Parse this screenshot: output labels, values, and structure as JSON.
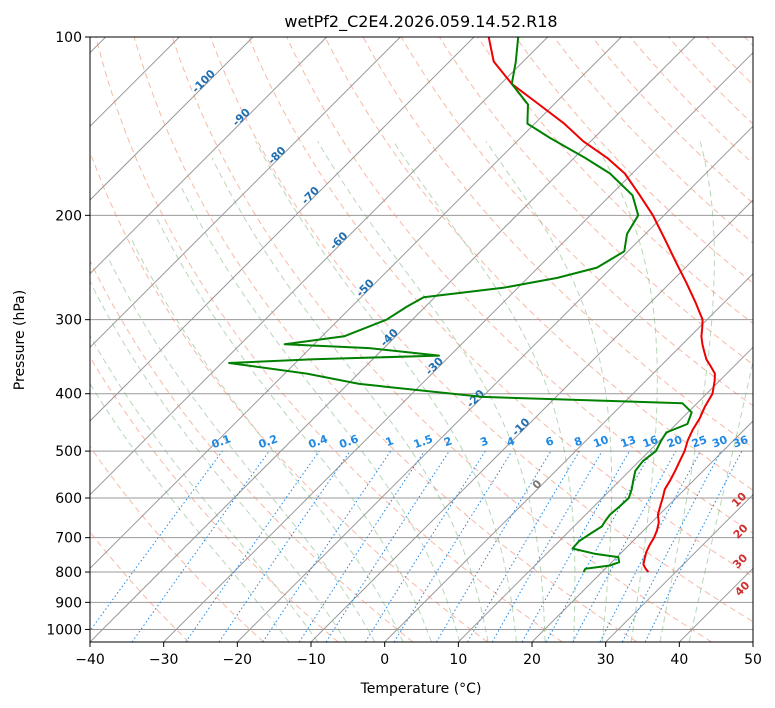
{
  "chart_data": {
    "type": "line",
    "title": "wetPf2_C2E4.2026.059.14.52.R18",
    "xlabel": "Temperature (°C)",
    "ylabel": "Pressure (hPa)",
    "xlim": [
      -40,
      50
    ],
    "ylim": [
      1050,
      100
    ],
    "y_scale": "log",
    "skew_deg": 45,
    "x_ticks": [
      -40,
      -30,
      -20,
      -10,
      0,
      10,
      20,
      30,
      40,
      50
    ],
    "y_ticks": [
      100,
      200,
      300,
      400,
      500,
      600,
      700,
      800,
      900,
      1000
    ],
    "grid": true,
    "colors": {
      "temperature": "#ee0000",
      "dewpoint": "#008000",
      "isotherm": "#999999",
      "dry_adiabat": "#f08060",
      "moist_adiabat": "#70b070",
      "mixing_ratio": "#1e88e5",
      "isotherm_label": "#1f6fb2",
      "dry_adiabat_label": "#d03030"
    },
    "isotherm_labels": [
      "-100",
      "-90",
      "-80",
      "-70",
      "-60",
      "-50",
      "-40",
      "-30",
      "-20",
      "-10",
      "0"
    ],
    "isotherm_label_pressures": [
      120,
      138,
      160,
      187,
      223,
      268,
      325,
      363,
      412,
      460,
      575
    ],
    "dry_adiabat_labels": [
      "10",
      "20",
      "30",
      "40"
    ],
    "dry_adiabat_label_positions": [
      [
        29.5,
        610
      ],
      [
        34,
        690
      ],
      [
        38,
        775
      ],
      [
        42,
        862
      ]
    ],
    "mixing_ratio_labels": [
      "0.1",
      "0.2",
      "0.4",
      "0.6",
      "1",
      "1.5",
      "2",
      "3",
      "4",
      "6",
      "8",
      "10",
      "13",
      "16",
      "20",
      "25",
      "30",
      "36"
    ],
    "series": [
      {
        "key": "temperature",
        "points": [
          [
            26.3,
            800
          ],
          [
            25.5,
            790
          ],
          [
            24.6,
            777
          ],
          [
            24.0,
            760
          ],
          [
            23.3,
            740
          ],
          [
            22.8,
            720
          ],
          [
            22.4,
            700
          ],
          [
            21.8,
            680
          ],
          [
            21.0,
            660
          ],
          [
            19.8,
            640
          ],
          [
            19.0,
            620
          ],
          [
            18.2,
            600
          ],
          [
            17.3,
            580
          ],
          [
            16.8,
            560
          ],
          [
            16.2,
            540
          ],
          [
            15.5,
            520
          ],
          [
            14.8,
            500
          ],
          [
            13.8,
            480
          ],
          [
            13.0,
            460
          ],
          [
            12.4,
            440
          ],
          [
            11.5,
            420
          ],
          [
            10.8,
            400
          ],
          [
            9.3,
            380
          ],
          [
            8.4,
            370
          ],
          [
            6.9,
            360
          ],
          [
            5.3,
            350
          ],
          [
            4.0,
            340
          ],
          [
            2.7,
            330
          ],
          [
            1.5,
            320
          ],
          [
            0.5,
            310
          ],
          [
            -0.6,
            300
          ],
          [
            -4,
            280
          ],
          [
            -7.8,
            260
          ],
          [
            -12,
            240
          ],
          [
            -16.5,
            220
          ],
          [
            -21.5,
            200
          ],
          [
            -26,
            185
          ],
          [
            -31,
            170
          ],
          [
            -35.5,
            160
          ],
          [
            -41,
            150
          ],
          [
            -46,
            140
          ],
          [
            -52,
            130
          ],
          [
            -58.5,
            120
          ],
          [
            -64,
            110
          ],
          [
            -68,
            100
          ]
        ]
      },
      {
        "key": "dewpoint",
        "points": [
          [
            17.5,
            800
          ],
          [
            17.3,
            790
          ],
          [
            20.2,
            780
          ],
          [
            21.0,
            770
          ],
          [
            20.2,
            755
          ],
          [
            16.5,
            745
          ],
          [
            12.8,
            730
          ],
          [
            12.7,
            710
          ],
          [
            13.2,
            690
          ],
          [
            13.8,
            670
          ],
          [
            13.5,
            655
          ],
          [
            13.3,
            640
          ],
          [
            13.5,
            620
          ],
          [
            13.6,
            600
          ],
          [
            12.8,
            580
          ],
          [
            11.8,
            560
          ],
          [
            10.8,
            540
          ],
          [
            10.5,
            520
          ],
          [
            10.9,
            500
          ],
          [
            10.2,
            480
          ],
          [
            9.8,
            465
          ],
          [
            11.5,
            450
          ],
          [
            10.5,
            430
          ],
          [
            8.0,
            415
          ],
          [
            -20.0,
            405
          ],
          [
            -38.5,
            385
          ],
          [
            -47,
            370
          ],
          [
            -59,
            355
          ],
          [
            -48,
            350
          ],
          [
            -31.5,
            345
          ],
          [
            -42,
            335
          ],
          [
            -54,
            330
          ],
          [
            -47.0,
            320
          ],
          [
            -43.5,
            300
          ],
          [
            -42.5,
            285
          ],
          [
            -41.5,
            275
          ],
          [
            -32,
            265
          ],
          [
            -26,
            255
          ],
          [
            -22,
            245
          ],
          [
            -20.5,
            230
          ],
          [
            -22.5,
            215
          ],
          [
            -23.5,
            200
          ],
          [
            -27,
            185
          ],
          [
            -33,
            170
          ],
          [
            -38.5,
            160
          ],
          [
            -46,
            148
          ],
          [
            -51,
            140
          ],
          [
            -53.5,
            130
          ],
          [
            -58.5,
            120
          ],
          [
            -61,
            110
          ],
          [
            -64,
            100
          ]
        ]
      }
    ]
  }
}
